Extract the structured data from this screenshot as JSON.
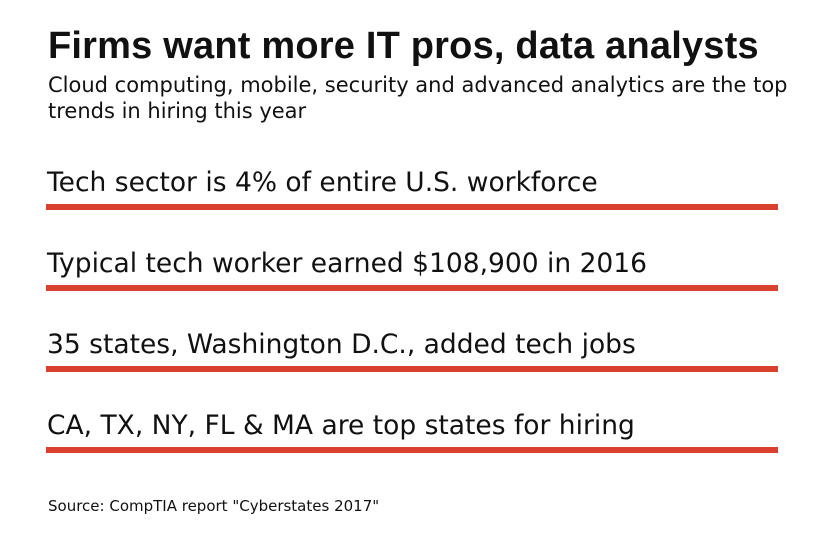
{
  "header": {
    "title": "Firms want more IT pros, data analysts",
    "subtitle": "Cloud computing, mobile, security and advanced analytics are the top trends in hiring this year"
  },
  "facts": [
    "Tech sector is 4% of entire U.S. workforce",
    "Typical tech worker earned $108,900 in 2016",
    "35 states, Washington D.C., added tech jobs",
    "CA, TX, NY, FL & MA are top states for hiring"
  ],
  "footer": {
    "source": "Source: CompTIA report \"Cyberstates 2017\""
  },
  "colors": {
    "accent_rule": "#d9412e",
    "text": "#111111",
    "background": "#ffffff"
  }
}
